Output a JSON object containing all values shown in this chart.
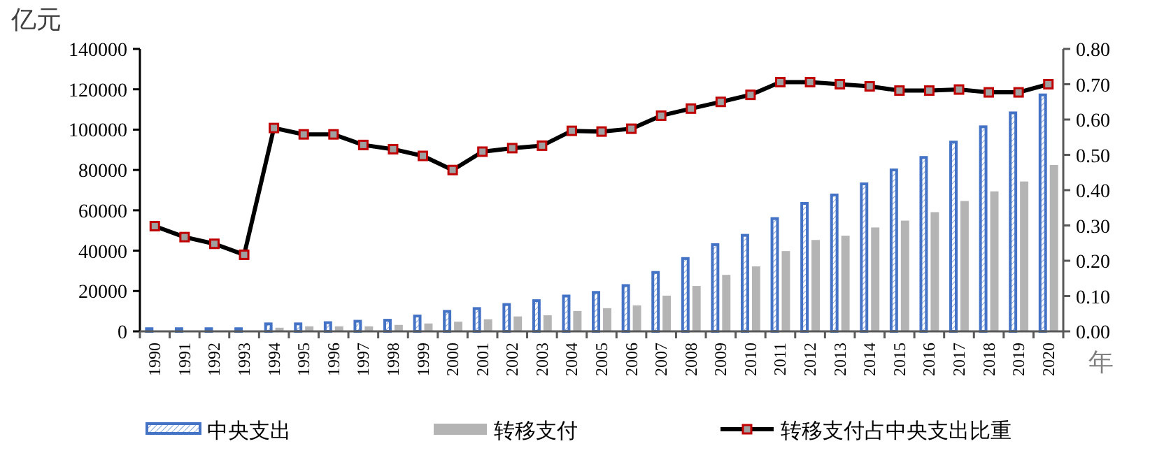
{
  "chart_data": {
    "type": "bar",
    "ylabel": "亿元",
    "xlabel": "年",
    "categories": [
      "1990",
      "1991",
      "1992",
      "1993",
      "1994",
      "1995",
      "1996",
      "1997",
      "1998",
      "1999",
      "2000",
      "2001",
      "2002",
      "2003",
      "2004",
      "2005",
      "2006",
      "2007",
      "2008",
      "2009",
      "2010",
      "2011",
      "2012",
      "2013",
      "2014",
      "2015",
      "2016",
      "2017",
      "2018",
      "2019",
      "2020"
    ],
    "series": [
      {
        "name": "中央支出",
        "color": "#4472c4",
        "values": [
          2000,
          2000,
          2000,
          2000,
          4400,
          4400,
          5000,
          5700,
          6200,
          8300,
          10600,
          12000,
          14000,
          15900,
          18200,
          20000,
          23400,
          29900,
          36800,
          43700,
          48300,
          56600,
          64100,
          68300,
          73800,
          80700,
          86900,
          94500,
          102100,
          109000,
          117900
        ]
      },
      {
        "name": "转移支付",
        "color": "#b4b4b4",
        "values": [
          null,
          null,
          null,
          null,
          1800,
          2500,
          2500,
          2500,
          3200,
          3900,
          4800,
          6000,
          7400,
          8000,
          10100,
          11500,
          12900,
          17700,
          22500,
          28000,
          32200,
          39800,
          45300,
          47400,
          51500,
          54900,
          59100,
          64600,
          69400,
          74300,
          82500
        ]
      },
      {
        "name": "转移支付占中央支出比重",
        "color": "#000000",
        "type": "line",
        "axis": "y2",
        "marker": "square",
        "values": [
          0.298,
          0.267,
          0.248,
          0.217,
          0.576,
          0.558,
          0.558,
          0.528,
          0.516,
          0.497,
          0.457,
          0.509,
          0.519,
          0.526,
          0.568,
          0.566,
          0.574,
          0.611,
          0.631,
          0.65,
          0.67,
          0.706,
          0.706,
          0.7,
          0.694,
          0.682,
          0.682,
          0.685,
          0.677,
          0.677,
          0.7
        ]
      }
    ],
    "ylim": [
      0,
      140000
    ],
    "yticks": [
      0,
      20000,
      40000,
      60000,
      80000,
      100000,
      120000,
      140000
    ],
    "y2lim": [
      0,
      0.8
    ],
    "y2ticks": [
      {
        "value": 0,
        "label": "0.00"
      },
      {
        "value": 0.1,
        "label": "0.10"
      },
      {
        "value": 0.2,
        "label": "0.20"
      },
      {
        "value": 0.3,
        "label": "0.30"
      },
      {
        "value": 0.4,
        "label": "0.40"
      },
      {
        "value": 0.5,
        "label": "0.50"
      },
      {
        "value": 0.6,
        "label": "0.60"
      },
      {
        "value": 0.7,
        "label": "0.70"
      },
      {
        "value": 0.8,
        "label": "0.80"
      }
    ],
    "grid": false,
    "legend": "bottom"
  }
}
